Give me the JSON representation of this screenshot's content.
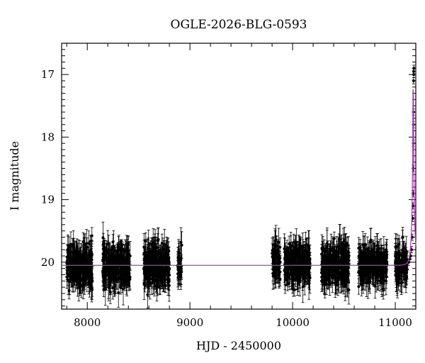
{
  "chart_data": {
    "type": "scatter",
    "title": "OGLE-2026-BLG-0593",
    "xlabel": "HJD - 2450000",
    "ylabel": "I magnitude",
    "xlim": [
      7750,
      11200
    ],
    "ylim": [
      20.75,
      16.5
    ],
    "y_inverted": true,
    "x_ticks": [
      8000,
      9000,
      10000,
      11000
    ],
    "y_ticks": [
      17,
      18,
      19,
      20
    ],
    "x_tick_labels": [
      "8000",
      "9000",
      "10000",
      "11000"
    ],
    "y_tick_labels": [
      "17",
      "18",
      "19",
      "20"
    ],
    "baseline_magnitude": 20.05,
    "peak_time": 11175,
    "point_color": "#000000",
    "model_color": "#b03ab8",
    "observing_seasons": [
      {
        "start": 7800,
        "end": 8050,
        "count": 260,
        "mean_mag": 20.06,
        "scatter_mag": 0.22
      },
      {
        "start": 8150,
        "end": 8420,
        "count": 260,
        "mean_mag": 20.06,
        "scatter_mag": 0.22
      },
      {
        "start": 8550,
        "end": 8800,
        "count": 240,
        "mean_mag": 20.06,
        "scatter_mag": 0.24
      },
      {
        "start": 8880,
        "end": 8920,
        "count": 40,
        "mean_mag": 20.05,
        "scatter_mag": 0.2
      },
      {
        "start": 9800,
        "end": 9880,
        "count": 60,
        "mean_mag": 20.0,
        "scatter_mag": 0.22
      },
      {
        "start": 9920,
        "end": 10170,
        "count": 240,
        "mean_mag": 20.05,
        "scatter_mag": 0.22
      },
      {
        "start": 10280,
        "end": 10550,
        "count": 240,
        "mean_mag": 20.05,
        "scatter_mag": 0.23
      },
      {
        "start": 10640,
        "end": 10920,
        "count": 240,
        "mean_mag": 20.06,
        "scatter_mag": 0.22
      },
      {
        "start": 11000,
        "end": 11120,
        "count": 120,
        "mean_mag": 20.05,
        "scatter_mag": 0.2
      }
    ],
    "rise_points": [
      {
        "x": 11130,
        "y": 20.0
      },
      {
        "x": 11140,
        "y": 19.95
      },
      {
        "x": 11150,
        "y": 19.9
      },
      {
        "x": 11158,
        "y": 19.8
      },
      {
        "x": 11165,
        "y": 19.6
      },
      {
        "x": 11170,
        "y": 19.3
      },
      {
        "x": 11172,
        "y": 19.1
      },
      {
        "x": 11174,
        "y": 18.9
      },
      {
        "x": 11175,
        "y": 18.5
      },
      {
        "x": 11176,
        "y": 18.1
      },
      {
        "x": 11177,
        "y": 17.8
      },
      {
        "x": 11177,
        "y": 17.6
      },
      {
        "x": 11178,
        "y": 17.1
      },
      {
        "x": 11179,
        "y": 16.95
      },
      {
        "x": 11180,
        "y": 17.0
      },
      {
        "x": 11181,
        "y": 16.9
      }
    ],
    "grid": false,
    "legend": "none"
  }
}
